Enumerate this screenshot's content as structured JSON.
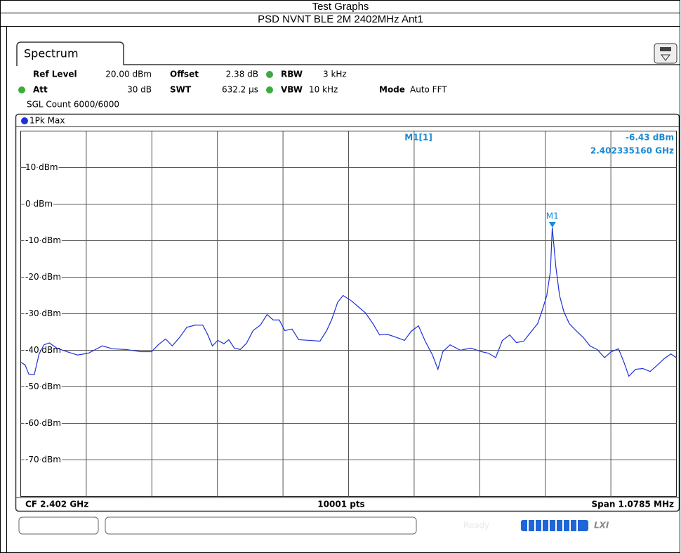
{
  "header": {
    "title": "Test Graphs",
    "subtitle": "PSD NVNT BLE 2M 2402MHz Ant1"
  },
  "instrument": {
    "tab": "Spectrum",
    "ref_level_label": "Ref Level",
    "ref_level": "20.00 dBm",
    "offset_label": "Offset",
    "offset": "2.38 dB",
    "rbw_label": "RBW",
    "rbw": "3 kHz",
    "att_label": "Att",
    "att": "30 dB",
    "swt_label": "SWT",
    "swt": "632.2 µs",
    "vbw_label": "VBW",
    "vbw": "10 kHz",
    "mode_label": "Mode",
    "mode": "Auto FFT",
    "count": "SGL Count 6000/6000",
    "trace_label": "1Pk Max",
    "center": "CF 2.402 GHz",
    "points": "10001 pts",
    "span": "Span 1.0785 MHz",
    "status": "Ready"
  },
  "chart_data": {
    "type": "line",
    "xlim": [
      2401.46075,
      2402.53925
    ],
    "ylim": [
      -80,
      20
    ],
    "yticks": [
      {
        "value": 10,
        "label": "10 dBm"
      },
      {
        "value": 0,
        "label": "0 dBm"
      },
      {
        "value": -10,
        "label": "-10 dBm"
      },
      {
        "value": -20,
        "label": "-20 dBm"
      },
      {
        "value": -30,
        "label": "-30 dBm"
      },
      {
        "value": -40,
        "label": "-40 dBm"
      },
      {
        "value": -50,
        "label": "-50 dBm"
      },
      {
        "value": -60,
        "label": "-60 dBm"
      },
      {
        "value": -70,
        "label": "-70 dBm"
      }
    ],
    "grid": true,
    "series": [
      {
        "color": "#1f2fd6",
        "x": [
          2401.461,
          2401.468,
          2401.474,
          2401.483,
          2401.491,
          2401.499,
          2401.508,
          2401.52,
          2401.537,
          2401.554,
          2401.572,
          2401.595,
          2401.612,
          2401.635,
          2401.658,
          2401.676,
          2401.687,
          2401.699,
          2401.71,
          2401.722,
          2401.734,
          2401.748,
          2401.76,
          2401.768,
          2401.776,
          2401.785,
          2401.795,
          2401.803,
          2401.812,
          2401.822,
          2401.832,
          2401.843,
          2401.855,
          2401.866,
          2401.876,
          2401.886,
          2401.895,
          2401.907,
          2401.918,
          2401.936,
          2401.953,
          2401.964,
          2401.972,
          2401.982,
          2401.991,
          2402.005,
          2402.016,
          2402.028,
          2402.04,
          2402.051,
          2402.063,
          2402.074,
          2402.092,
          2402.103,
          2402.115,
          2402.126,
          2402.138,
          2402.147,
          2402.155,
          2402.167,
          2402.184,
          2402.201,
          2402.219,
          2402.23,
          2402.242,
          2402.253,
          2402.265,
          2402.276,
          2402.288,
          2402.299,
          2402.311,
          2402.319,
          2402.326,
          2402.332,
          2402.335,
          2402.341,
          2402.347,
          2402.354,
          2402.363,
          2402.374,
          2402.386,
          2402.397,
          2402.409,
          2402.421,
          2402.432,
          2402.444,
          2402.453,
          2402.461,
          2402.472,
          2402.484,
          2402.496,
          2402.507,
          2402.519,
          2402.53,
          2402.539
        ],
        "values": [
          -43.3,
          -44,
          -46.5,
          -46.7,
          -41,
          -38.5,
          -38,
          -39.4,
          -40.4,
          -41.3,
          -40.8,
          -38.8,
          -39.6,
          -39.8,
          -40.4,
          -40.4,
          -38.5,
          -36.9,
          -38.8,
          -36.5,
          -33.7,
          -33.1,
          -33.1,
          -35.6,
          -38.8,
          -37.3,
          -38.2,
          -37.1,
          -39.4,
          -39.8,
          -38.1,
          -34.6,
          -33.1,
          -30.2,
          -31.7,
          -31.7,
          -34.6,
          -34.2,
          -37.1,
          -37.3,
          -37.5,
          -34.6,
          -31.7,
          -26.9,
          -25,
          -26.5,
          -28.1,
          -29.8,
          -32.7,
          -35.8,
          -35.6,
          -36.2,
          -37.3,
          -34.8,
          -33.3,
          -37.5,
          -41.3,
          -45.2,
          -40.4,
          -38.5,
          -40,
          -39.4,
          -40.4,
          -40.8,
          -42,
          -37.3,
          -35.8,
          -37.9,
          -37.5,
          -35.2,
          -32.7,
          -28.8,
          -25,
          -18.3,
          -6.43,
          -17.3,
          -25,
          -29.4,
          -32.7,
          -34.6,
          -36.5,
          -38.8,
          -39.8,
          -42,
          -40.4,
          -39.6,
          -43.3,
          -47.1,
          -45.2,
          -45,
          -45.8,
          -44.2,
          -42.3,
          -41,
          -42
        ]
      }
    ],
    "marker": {
      "name": "M1",
      "readout": "M1[1]",
      "x": 2402.33516,
      "x_label": "2.402335160 GHz",
      "y": -6.43,
      "y_label": "-6.43 dBm",
      "color": "#1a8ad4"
    }
  }
}
